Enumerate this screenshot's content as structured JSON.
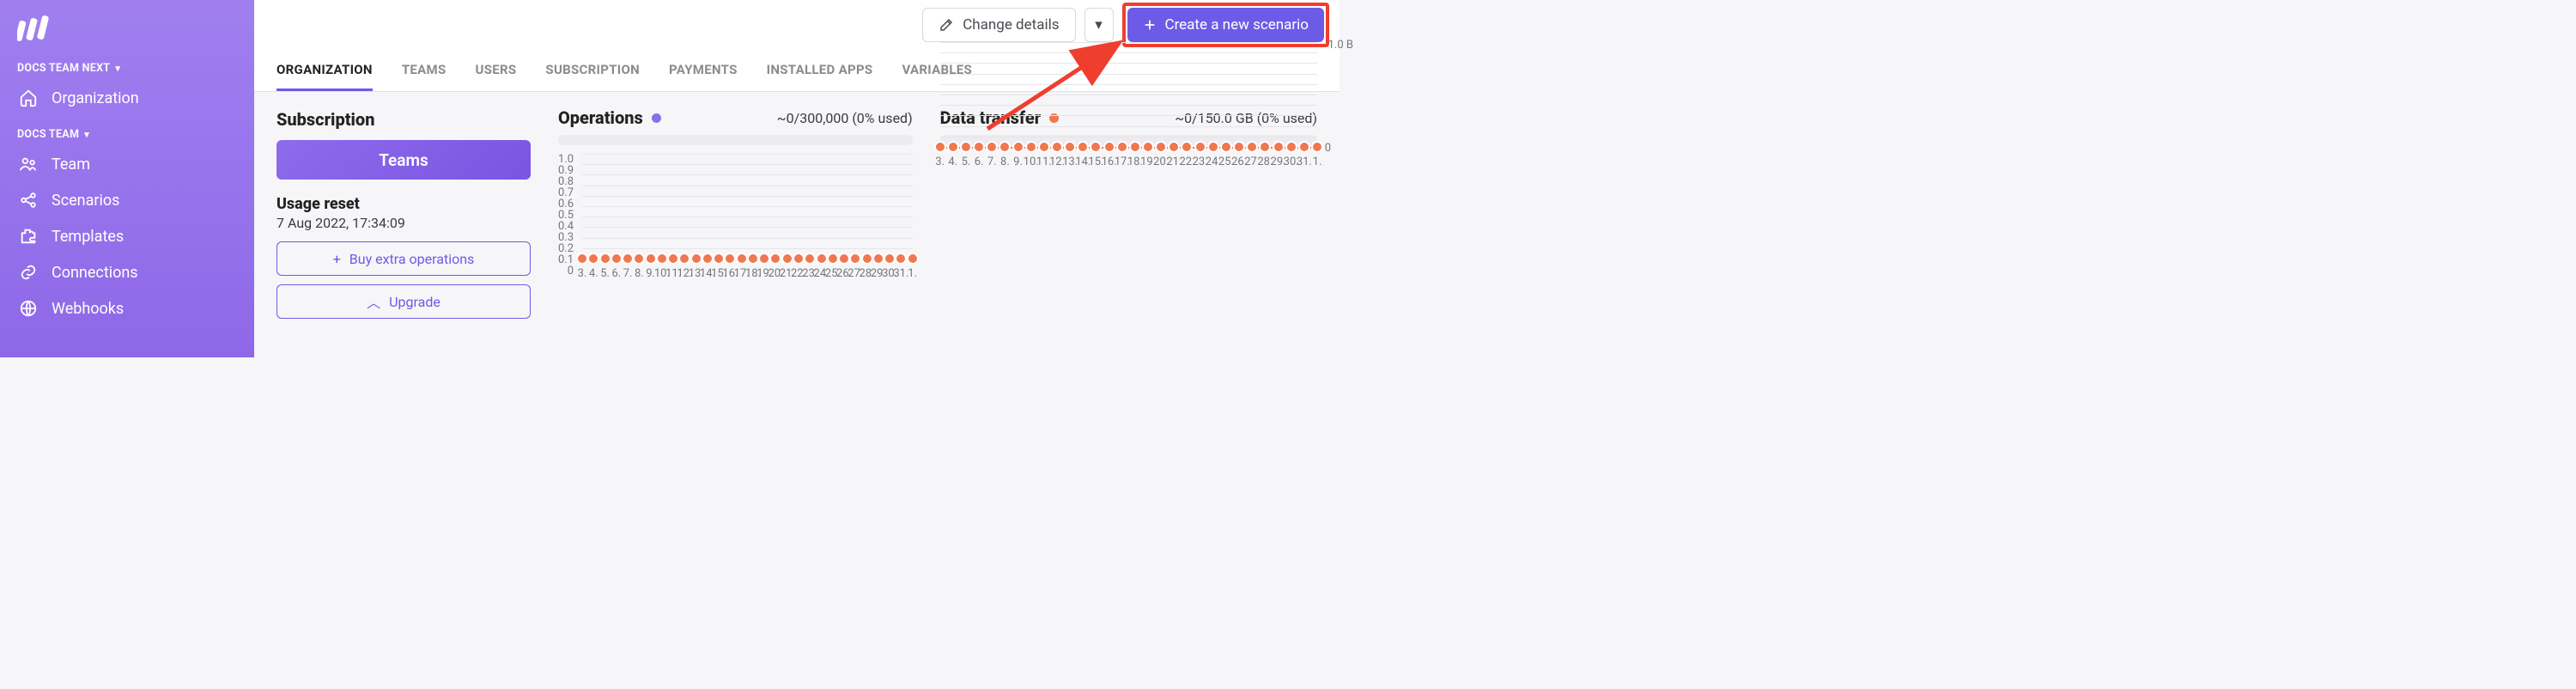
{
  "sidebar": {
    "group1": "DOCS TEAM NEXT",
    "group2": "DOCS TEAM",
    "items": [
      "Organization",
      "Team",
      "Scenarios",
      "Templates",
      "Connections",
      "Webhooks"
    ]
  },
  "topbar": {
    "change": "Change details",
    "create": "Create a new scenario"
  },
  "tabs": [
    "ORGANIZATION",
    "TEAMS",
    "USERS",
    "SUBSCRIPTION",
    "PAYMENTS",
    "INSTALLED APPS",
    "VARIABLES"
  ],
  "subscription": {
    "title": "Subscription",
    "teams_btn": "Teams",
    "reset_title": "Usage reset",
    "reset_date": "7 Aug 2022, 17:34:09",
    "buy_btn": "Buy extra operations",
    "upgrade_btn": "Upgrade"
  },
  "operations": {
    "title": "Operations",
    "meta": "~0/300,000 (0% used)",
    "dot_color": "#8a6fe6",
    "y_ticks": [
      "1.0",
      "0.9",
      "0.8",
      "0.7",
      "0.6",
      "0.5",
      "0.4",
      "0.3",
      "0.2",
      "0.1",
      "0"
    ],
    "series_color": "#f07850"
  },
  "data_transfer": {
    "title": "Data transfer",
    "meta": "~0/150.0 GB (0% used)",
    "dot_color": "#f07850",
    "y_top": "1.0 B",
    "y_zero": "0",
    "series_color": "#f07850"
  },
  "x_labels": [
    "3.",
    "4.",
    "5.",
    "6.",
    "7.",
    "8.",
    "9.",
    "10.",
    "11.",
    "12.",
    "13.",
    "14.",
    "15.",
    "16.",
    "17.",
    "18.",
    "19.",
    "20.",
    "21.",
    "22.",
    "23.",
    "24.",
    "25.",
    "26.",
    "27.",
    "28.",
    "29.",
    "30.",
    "31.",
    "1."
  ],
  "colors": {
    "highlight": "#ef3e2e",
    "primary_btn": "#6d5be7"
  }
}
